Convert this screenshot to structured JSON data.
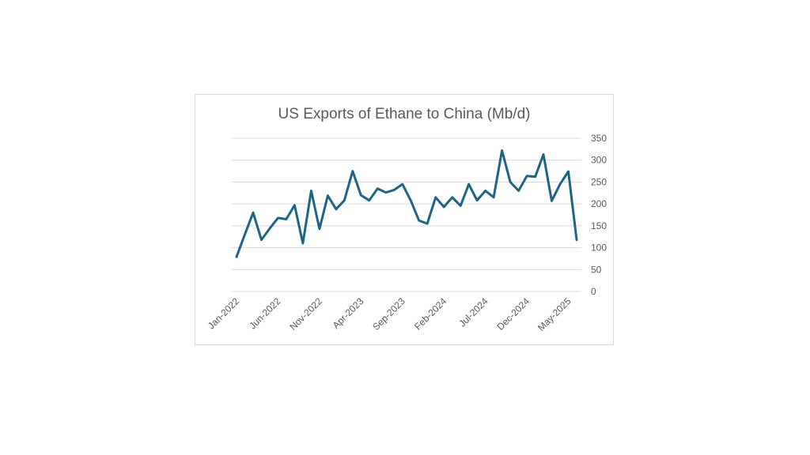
{
  "chart_data": {
    "type": "line",
    "title": "US Exports of Ethane to China (Mb/d)",
    "xlabel": "",
    "ylabel": "",
    "ylim": [
      0,
      350
    ],
    "y_ticks": [
      0,
      50,
      100,
      150,
      200,
      250,
      300,
      350
    ],
    "y_axis_side": "right",
    "grid": true,
    "legend": "none",
    "x": [
      "Jan-2022",
      "Feb-2022",
      "Mar-2022",
      "Apr-2022",
      "May-2022",
      "Jun-2022",
      "Jul-2022",
      "Aug-2022",
      "Sep-2022",
      "Oct-2022",
      "Nov-2022",
      "Dec-2022",
      "Jan-2023",
      "Feb-2023",
      "Mar-2023",
      "Apr-2023",
      "May-2023",
      "Jun-2023",
      "Jul-2023",
      "Aug-2023",
      "Sep-2023",
      "Oct-2023",
      "Nov-2023",
      "Dec-2023",
      "Jan-2024",
      "Feb-2024",
      "Mar-2024",
      "Apr-2024",
      "May-2024",
      "Jun-2024",
      "Jul-2024",
      "Aug-2024",
      "Sep-2024",
      "Oct-2024",
      "Nov-2024",
      "Dec-2024",
      "Jan-2025",
      "Feb-2025",
      "Mar-2025",
      "Apr-2025",
      "May-2025",
      "Jun-2025"
    ],
    "x_tick_labels": [
      "Jan-2022",
      "Jun-2022",
      "Nov-2022",
      "Apr-2023",
      "Sep-2023",
      "Feb-2024",
      "Jul-2024",
      "Dec-2024",
      "May-2025"
    ],
    "series": [
      {
        "color": "#1f6485",
        "values": [
          79,
          130,
          180,
          118,
          144,
          168,
          165,
          197,
          110,
          230,
          143,
          219,
          188,
          208,
          275,
          220,
          208,
          235,
          226,
          232,
          245,
          208,
          162,
          155,
          215,
          193,
          215,
          196,
          245,
          208,
          230,
          215,
          322,
          250,
          230,
          264,
          262,
          313,
          207,
          245,
          274,
          118
        ]
      }
    ]
  }
}
